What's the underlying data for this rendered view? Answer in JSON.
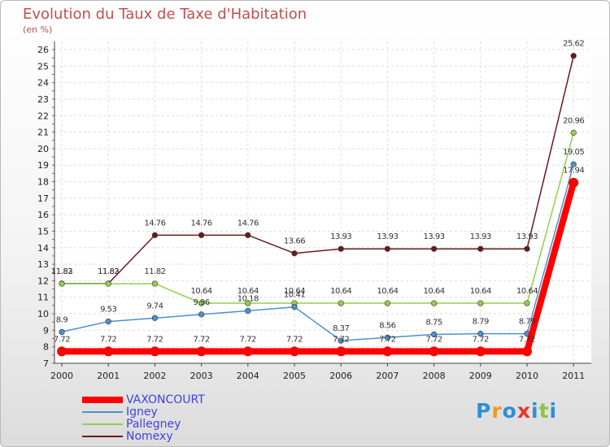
{
  "chart_data": {
    "type": "line",
    "title": "Evolution du Taux de Taxe d'Habitation",
    "subtitle": "(en %)",
    "x": [
      "2000",
      "2001",
      "2002",
      "2003",
      "2004",
      "2005",
      "2006",
      "2007",
      "2008",
      "2009",
      "2010",
      "2011"
    ],
    "yticks": [
      7,
      8,
      9,
      10,
      11,
      12,
      13,
      14,
      15,
      16,
      17,
      18,
      19,
      20,
      21,
      22,
      23,
      24,
      25,
      26
    ],
    "ylim": [
      7,
      26
    ],
    "grid": true,
    "legend_position": "bottom-left",
    "series": [
      {
        "name": "VAXONCOURT",
        "color": "#ff0000",
        "values": [
          7.72,
          7.72,
          7.72,
          7.72,
          7.72,
          7.72,
          7.72,
          7.72,
          7.72,
          7.72,
          7.72,
          17.94
        ],
        "labels": [
          "7.72",
          "7.72",
          "7.72",
          "7.72",
          "7.72",
          "7.72",
          "7.72",
          "7.72",
          "7.72",
          "7.72",
          "7.72",
          "17.94"
        ]
      },
      {
        "name": "Igney",
        "color": "#4f8fce",
        "values": [
          8.9,
          9.53,
          9.74,
          9.96,
          10.18,
          10.41,
          8.37,
          8.56,
          8.75,
          8.79,
          8.79,
          19.05
        ],
        "labels": [
          "8.9",
          "9.53",
          "9.74",
          "9.96",
          "10.18",
          "10.41",
          "8.37",
          "8.56",
          "8.75",
          "8.79",
          "8.79",
          "19.05"
        ]
      },
      {
        "name": "Pallegney",
        "color": "#8fd14f",
        "values": [
          11.82,
          11.82,
          11.82,
          10.64,
          10.64,
          10.64,
          10.64,
          10.64,
          10.64,
          10.64,
          10.64,
          20.96
        ],
        "labels": [
          "11.82",
          "11.82",
          "11.82",
          "10.64",
          "10.64",
          "10.64",
          "10.64",
          "10.64",
          "10.64",
          "10.64",
          "10.64",
          "20.96"
        ]
      },
      {
        "name": "Nomexy",
        "color": "#6b1a1a",
        "values": [
          11.83,
          11.83,
          14.76,
          14.76,
          14.76,
          13.66,
          13.93,
          13.93,
          13.93,
          13.93,
          13.93,
          25.62
        ],
        "labels": [
          "11.83",
          "11.83",
          "14.76",
          "14.76",
          "14.76",
          "13.66",
          "13.93",
          "13.93",
          "13.93",
          "13.93",
          "13.93",
          "25.62"
        ]
      }
    ]
  },
  "brand": {
    "letters": [
      "P",
      "r",
      "o",
      "x",
      "i",
      "t",
      "i"
    ],
    "colors": [
      "#2e8fd6",
      "#f39a1e",
      "#2e8fd6",
      "#e8352e",
      "#2e8fd6",
      "#8cc63f",
      "#2e8fd6"
    ]
  }
}
